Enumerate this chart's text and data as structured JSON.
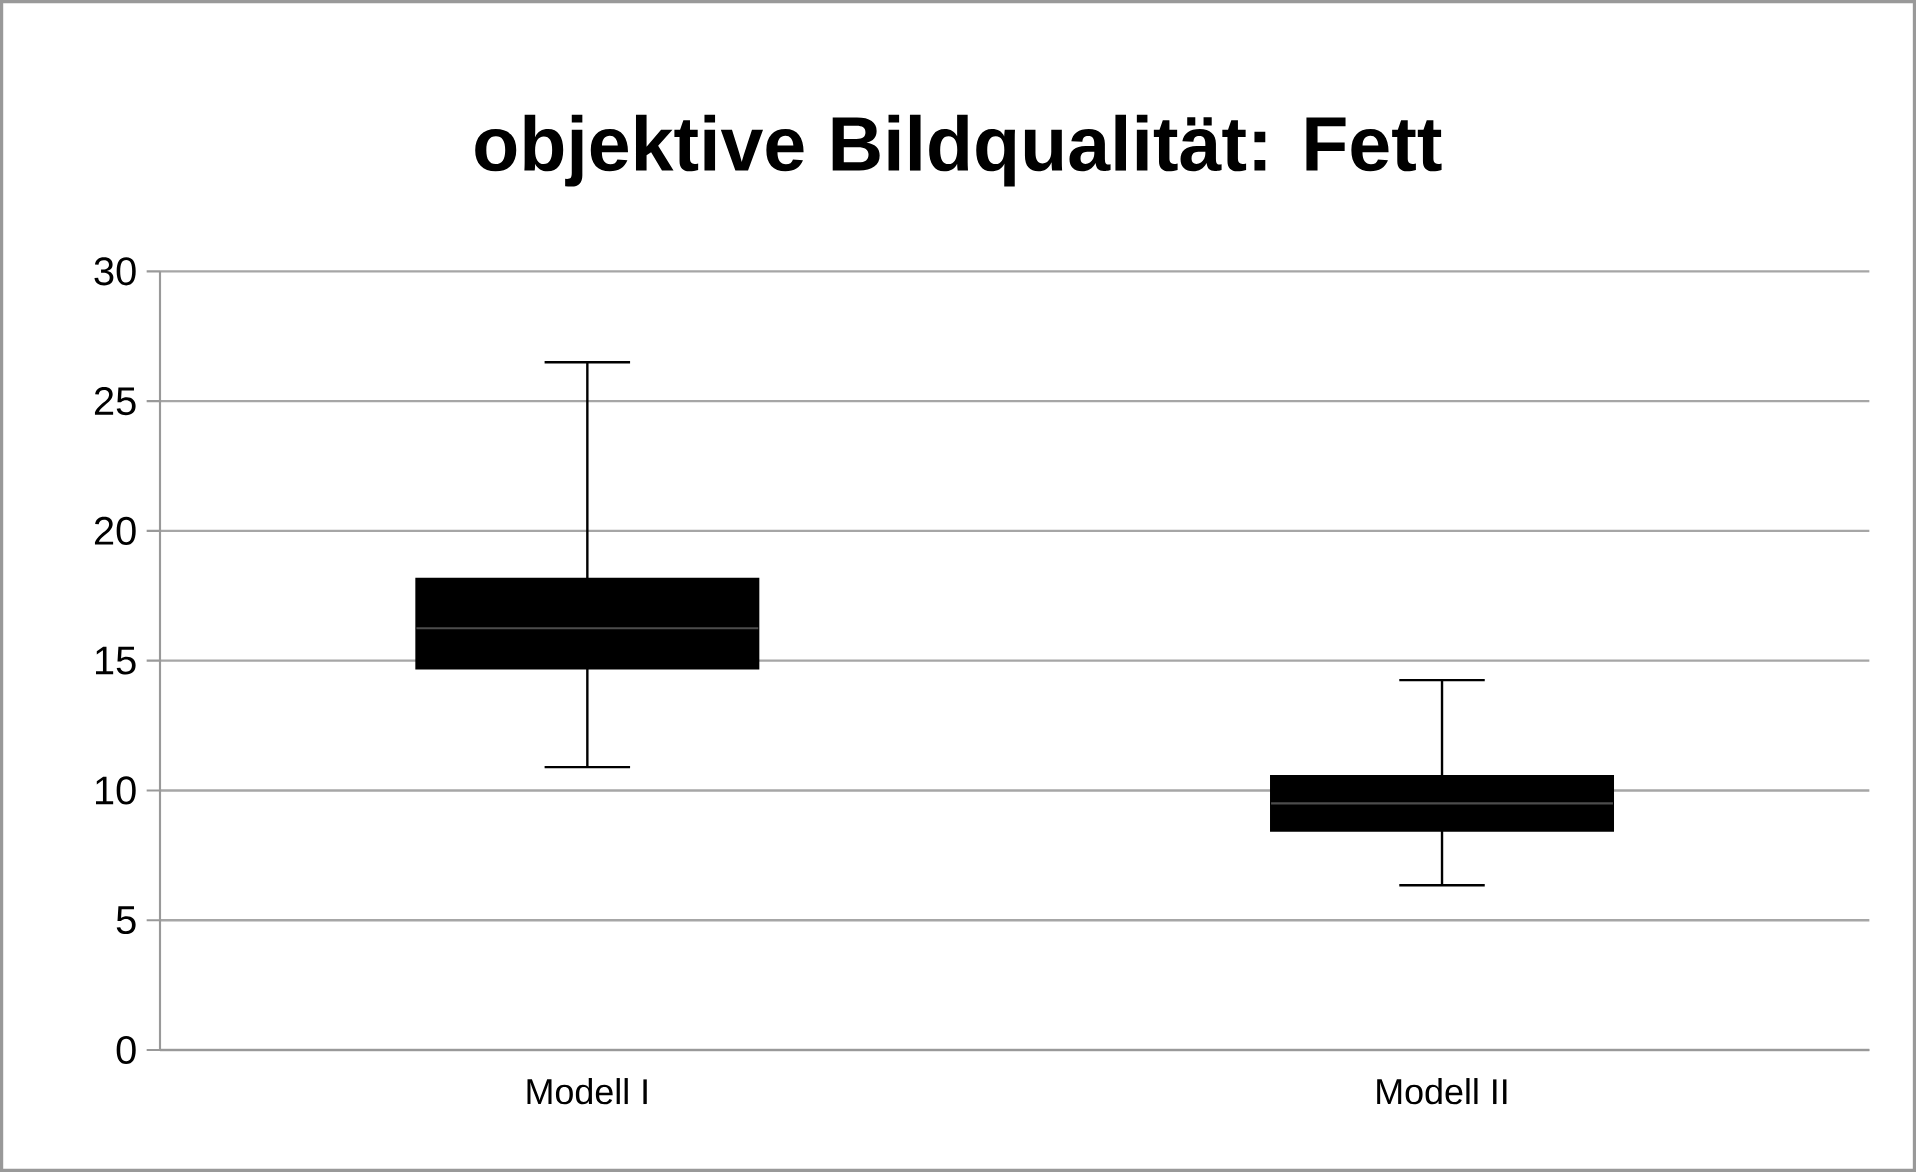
{
  "chart_data": {
    "type": "box",
    "title": "objektive Bildqualität: Fett",
    "categories": [
      "Modell I",
      "Modell II"
    ],
    "boxes": [
      {
        "low": 10.9,
        "q1": 14.7,
        "median": 16.25,
        "q3": 18.15,
        "high": 26.5
      },
      {
        "low": 6.35,
        "q1": 8.45,
        "median": 9.5,
        "q3": 10.55,
        "high": 14.25
      }
    ],
    "color": "#000000",
    "ylim": [
      0,
      30
    ],
    "yticks": [
      0,
      5,
      10,
      15,
      20,
      25,
      30
    ],
    "grid": "y"
  }
}
